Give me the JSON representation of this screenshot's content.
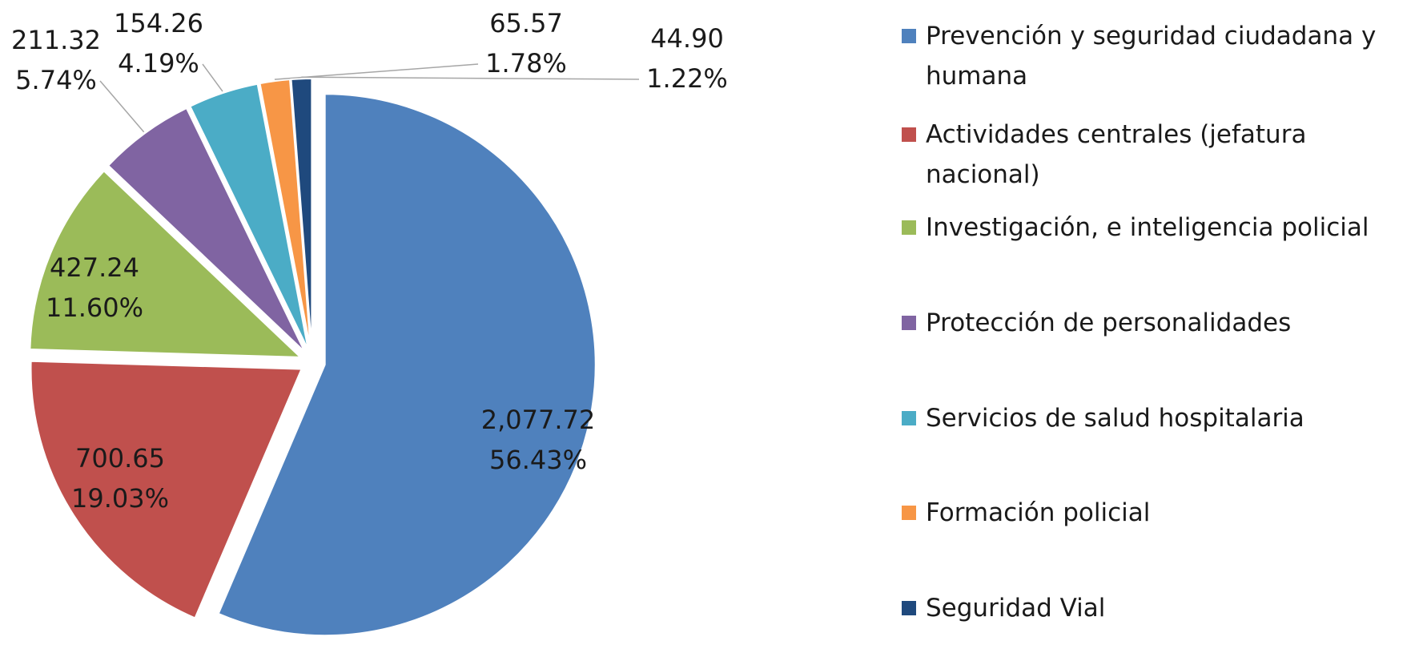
{
  "chart_data": {
    "type": "pie",
    "categories": [
      "Prevención y seguridad ciudadana y humana",
      "Actividades centrales (jefatura nacional)",
      "Investigación, e inteligencia policial",
      "Protección de personalidades",
      "Servicios de salud hospitalaria",
      "Formación policial",
      "Seguridad Vial"
    ],
    "values": [
      2077.72,
      700.65,
      427.24,
      211.32,
      154.26,
      65.57,
      44.9
    ],
    "value_labels": [
      "2,077.72",
      "700.65",
      "427.24",
      "211.32",
      "154.26",
      "65.57",
      "44.90"
    ],
    "percentages": [
      56.43,
      19.03,
      11.6,
      5.74,
      4.19,
      1.78,
      1.22
    ],
    "percentage_labels": [
      "56.43%",
      "19.03%",
      "11.60%",
      "5.74%",
      "4.19%",
      "1.78%",
      "1.22%"
    ],
    "colors": [
      "#4f81bd",
      "#c0504d",
      "#9bbb59",
      "#8064a2",
      "#4bacc6",
      "#f79646",
      "#1f497d"
    ],
    "legend": "right"
  }
}
